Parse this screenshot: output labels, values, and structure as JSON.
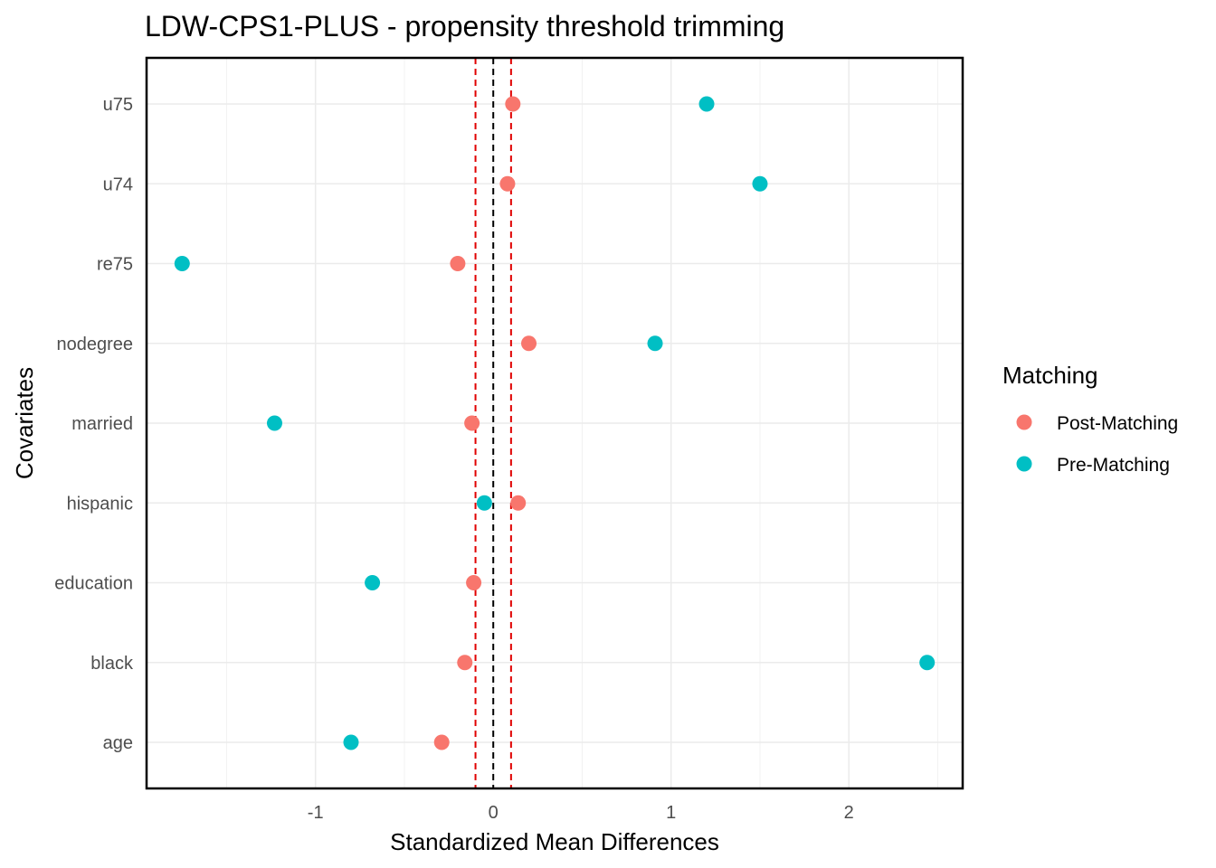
{
  "chart_data": {
    "type": "scatter",
    "title": "LDW-CPS1-PLUS - propensity threshold trimming",
    "xlabel": "Standardized Mean Differences",
    "ylabel": "Covariates",
    "categories": [
      "u75",
      "u74",
      "re75",
      "nodegree",
      "married",
      "hispanic",
      "education",
      "black",
      "age"
    ],
    "xlim": [
      -1.95,
      2.64
    ],
    "x_ticks": [
      -1,
      0,
      1,
      2
    ],
    "x_tick_labels": [
      "-1",
      "0",
      "1",
      "2"
    ],
    "reference_lines": [
      {
        "x": 0,
        "color": "#000000",
        "style": "dashed"
      },
      {
        "x": -0.1,
        "color": "#e00000",
        "style": "dashed"
      },
      {
        "x": 0.1,
        "color": "#e00000",
        "style": "dashed"
      }
    ],
    "legend": {
      "title": "Matching",
      "position": "right"
    },
    "grid": true,
    "series": [
      {
        "name": "Post-Matching",
        "color": "#f8766d",
        "values": [
          0.11,
          0.08,
          -0.2,
          0.2,
          -0.12,
          0.14,
          -0.11,
          -0.16,
          -0.29
        ]
      },
      {
        "name": "Pre-Matching",
        "color": "#00bfc4",
        "values": [
          1.2,
          1.5,
          -1.75,
          0.91,
          -1.23,
          -0.05,
          -0.68,
          2.44,
          -0.8
        ]
      }
    ]
  }
}
